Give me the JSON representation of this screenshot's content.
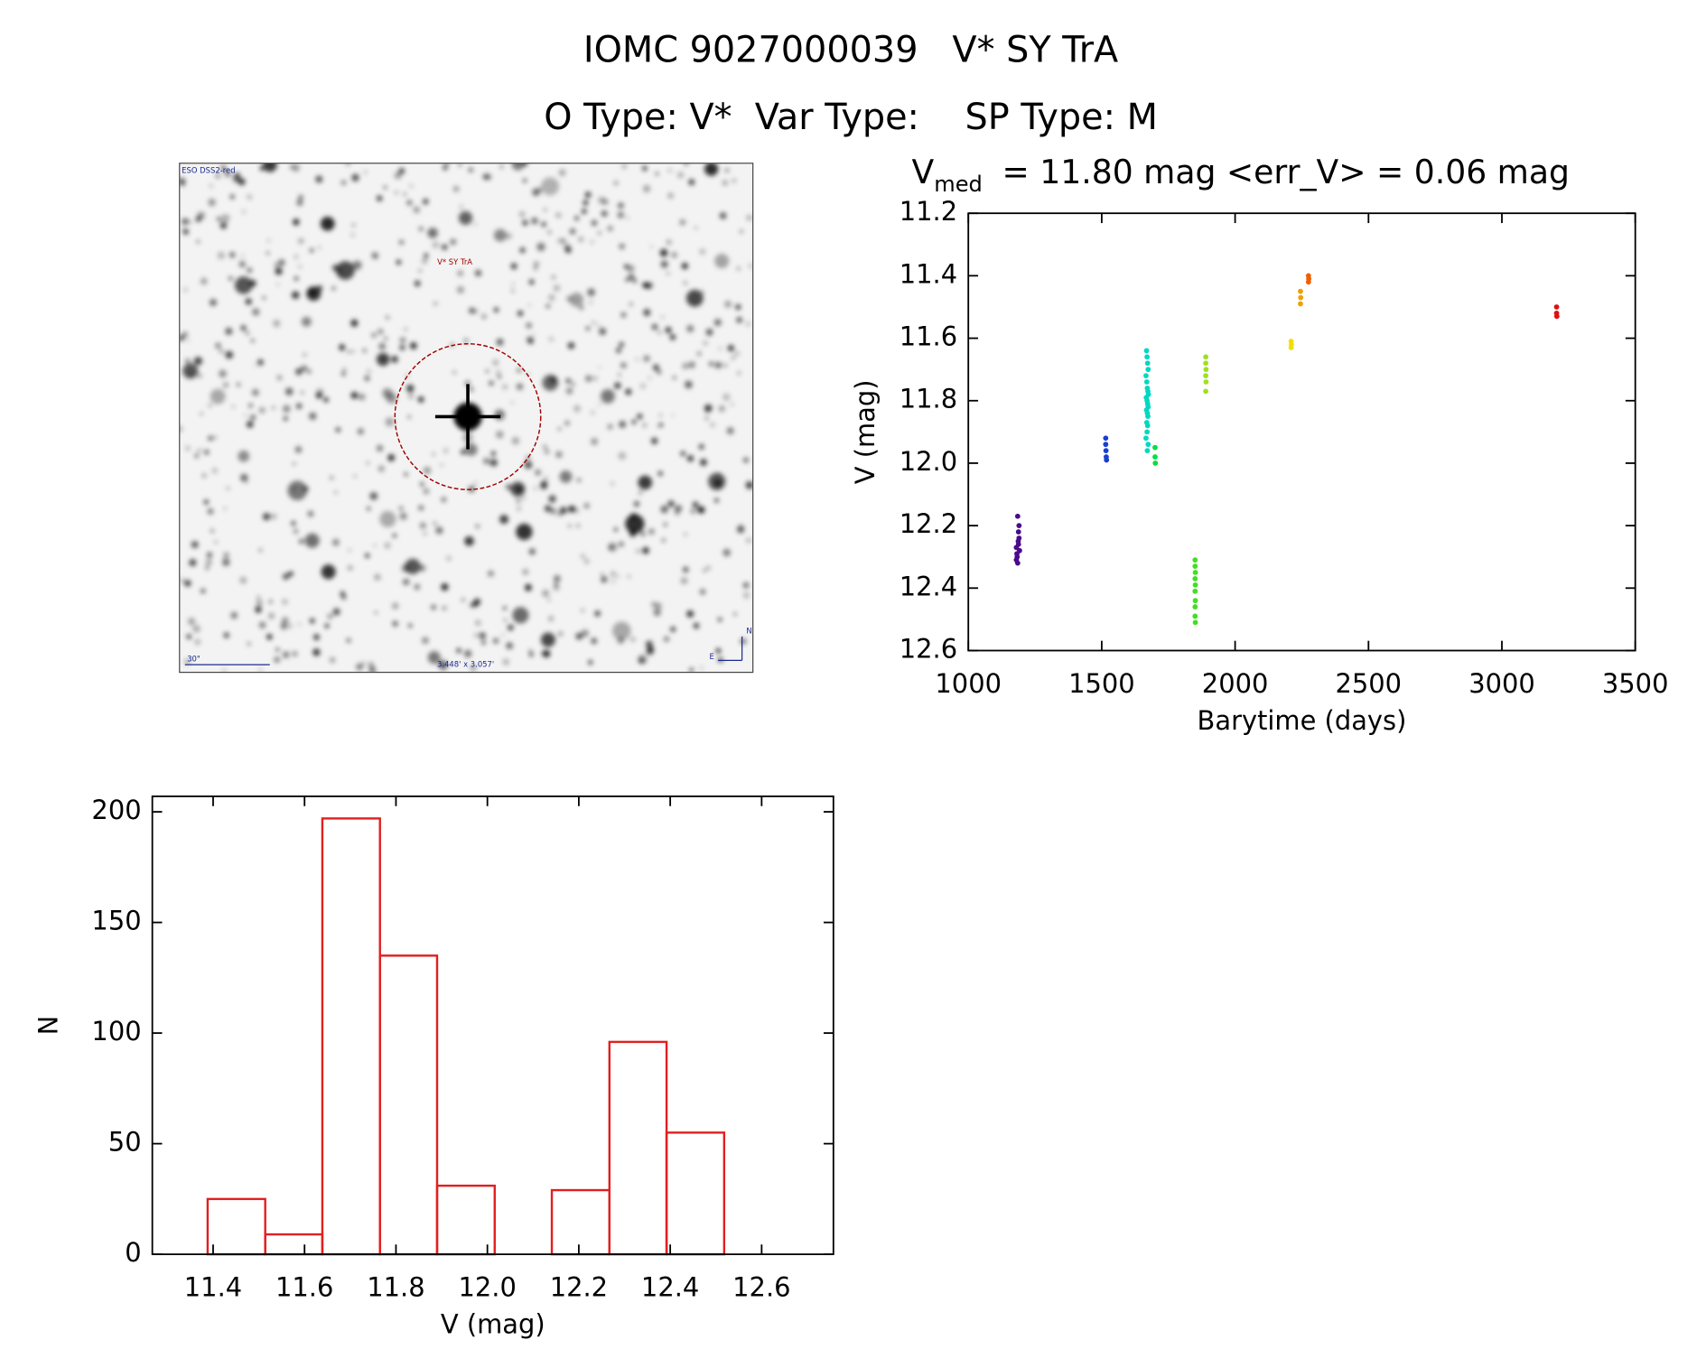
{
  "header": {
    "title": "IOMC 9027000039   V* SY TrA",
    "subtitle": "O Type: V*  Var Type:    SP Type: M"
  },
  "image": {
    "survey": "ESO DSS2-red",
    "target": "V* SY TrA",
    "scale": "30\"",
    "size": "3.448' x 3.057'",
    "north": "N",
    "east": "E"
  },
  "chart_data": [
    {
      "type": "scatter",
      "title": {
        "symbol": "V",
        "subscript": "med",
        "text": "= 11.80 mag <err_V> = 0.06 mag"
      },
      "xlabel": "Barytime (days)",
      "ylabel": "V (mag)",
      "xlim": [
        1000,
        3500
      ],
      "xticks": [
        1000,
        1500,
        2000,
        2500,
        3000,
        3500
      ],
      "ylim": [
        12.6,
        11.2
      ],
      "yticks": [
        11.2,
        11.4,
        11.6,
        11.8,
        {
          "value": 12,
          "label": "12.0"
        },
        12.2,
        12.4,
        12.6
      ],
      "series": [
        {
          "color": "#4b0a8c",
          "x": [
            1180,
            1183,
            1185,
            1187,
            1188,
            1190,
            1192,
            1185,
            1180,
            1190,
            1182,
            1188
          ],
          "values": [
            12.27,
            12.3,
            12.32,
            12.25,
            12.22,
            12.2,
            12.28,
            12.17,
            12.31,
            12.24,
            12.29,
            12.26
          ]
        },
        {
          "color": "#1a3fd0",
          "x": [
            1515,
            1515,
            1516,
            1517,
            1518
          ],
          "values": [
            11.92,
            11.94,
            11.96,
            11.98,
            11.99
          ]
        },
        {
          "color": "#00d8c0",
          "x": [
            1668,
            1670,
            1672,
            1674,
            1666,
            1669,
            1671,
            1673,
            1675,
            1667,
            1670,
            1672,
            1674,
            1668,
            1671,
            1673,
            1669,
            1672,
            1670,
            1666,
            1674,
            1671
          ],
          "values": [
            11.64,
            11.66,
            11.68,
            11.7,
            11.72,
            11.74,
            11.76,
            11.77,
            11.78,
            11.79,
            11.8,
            11.81,
            11.82,
            11.83,
            11.84,
            11.85,
            11.87,
            11.88,
            11.9,
            11.92,
            11.94,
            11.96
          ]
        },
        {
          "color": "#00e040",
          "x": [
            1700,
            1700,
            1701
          ],
          "values": [
            11.95,
            11.98,
            12.0
          ]
        },
        {
          "color": "#40e020",
          "x": [
            1850,
            1850,
            1851,
            1850,
            1851,
            1850,
            1851,
            1850,
            1850,
            1851
          ],
          "values": [
            12.31,
            12.33,
            12.35,
            12.37,
            12.39,
            12.41,
            12.44,
            12.46,
            12.49,
            12.51
          ]
        },
        {
          "color": "#a0e020",
          "x": [
            1890,
            1890,
            1891,
            1890,
            1891,
            1890
          ],
          "values": [
            11.66,
            11.68,
            11.7,
            11.72,
            11.74,
            11.77
          ]
        },
        {
          "color": "#f0e000",
          "x": [
            2210,
            2211,
            2210
          ],
          "values": [
            11.61,
            11.62,
            11.63
          ]
        },
        {
          "color": "#f0a000",
          "x": [
            2245,
            2246,
            2245
          ],
          "values": [
            11.45,
            11.47,
            11.49
          ]
        },
        {
          "color": "#f06000",
          "x": [
            2275,
            2276,
            2275
          ],
          "values": [
            11.4,
            11.41,
            11.42
          ]
        },
        {
          "color": "#e01010",
          "x": [
            3205,
            3205,
            3206
          ],
          "values": [
            11.5,
            11.52,
            11.53
          ]
        }
      ]
    },
    {
      "type": "histogram",
      "xlabel": "V (mag)",
      "ylabel": "N",
      "color": "#e02020",
      "bins": [
        11.388,
        11.514,
        11.639,
        11.765,
        11.89,
        12.016,
        12.141,
        12.267,
        12.392,
        12.518
      ],
      "values": [
        25,
        9,
        197,
        135,
        31,
        0,
        29,
        96,
        55
      ],
      "xlim": [
        11.267,
        12.757
      ],
      "xticks": [
        11.4,
        11.6,
        11.8,
        {
          "value": 12,
          "label": "12.0"
        },
        12.2,
        12.4,
        12.6
      ],
      "ylim": [
        0,
        207
      ],
      "yticks": [
        0,
        50,
        100,
        150,
        200
      ]
    }
  ]
}
